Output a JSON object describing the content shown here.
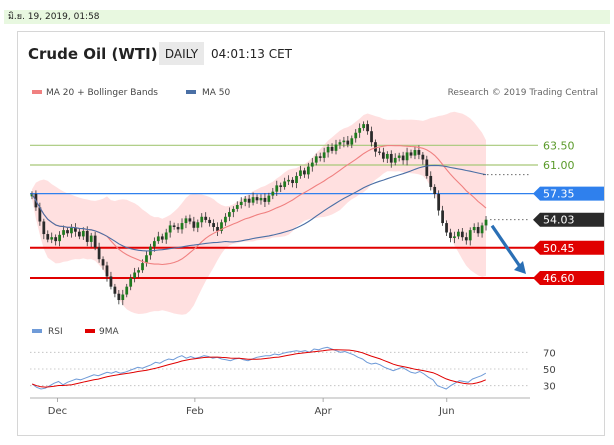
{
  "timestamp": "มิ.ย. 19, 2019, 01:58",
  "header": {
    "title": "Crude Oil (WTI)",
    "timeframe": "DAILY",
    "time": "04:01:13 CET"
  },
  "legend": {
    "ma20": "MA 20 + Bollinger Bands",
    "ma50": "MA 50",
    "credit": "Research © 2019 Trading Central",
    "rsi": "RSI",
    "rsi_ma": "9MA"
  },
  "colors": {
    "candle_up": "#1f7a1f",
    "candle_down": "#2a2a2a",
    "ma20": "#f08080",
    "bollinger_fill": "#ffd6d6",
    "ma50": "#4a6fa5",
    "resistance": "#a6c878",
    "pivot": "#2f80ed",
    "support": "#e00000",
    "last_price_tag": "#2a2a2a",
    "arrow": "#2a6fb5",
    "rsi": "#6f9bd8",
    "rsi_ma": "#e00000"
  },
  "chart_data": [
    {
      "type": "candlestick",
      "title": "Crude Oil (WTI)",
      "timeframe": "DAILY",
      "x_labels": [
        "Dec",
        "Feb",
        "Apr",
        "Jun"
      ],
      "ylim": [
        41,
        68
      ],
      "levels": [
        {
          "value": 63.5,
          "label": "63.50",
          "kind": "resistance"
        },
        {
          "value": 61.0,
          "label": "61.00",
          "kind": "resistance"
        },
        {
          "value": 57.35,
          "label": "57.35",
          "kind": "pivot"
        },
        {
          "value": 54.03,
          "label": "54.03",
          "kind": "last"
        },
        {
          "value": 50.45,
          "label": "50.45",
          "kind": "support"
        },
        {
          "value": 46.6,
          "label": "46.60",
          "kind": "support"
        }
      ],
      "close_series": [
        57.3,
        55.6,
        53.8,
        52.2,
        51.5,
        51.8,
        51.3,
        52.1,
        52.7,
        52.3,
        53.0,
        52.5,
        51.9,
        52.6,
        51.2,
        52.0,
        50.5,
        49.0,
        48.2,
        46.8,
        45.5,
        44.6,
        43.8,
        44.5,
        45.5,
        46.6,
        47.3,
        47.6,
        48.5,
        49.5,
        50.6,
        51.3,
        51.9,
        51.5,
        52.4,
        53.3,
        53.1,
        52.8,
        53.6,
        54.2,
        53.8,
        53.0,
        53.7,
        54.4,
        54.0,
        53.6,
        53.1,
        52.6,
        53.7,
        54.4,
        55.0,
        55.4,
        55.9,
        56.3,
        56.7,
        56.2,
        56.9,
        56.5,
        56.8,
        56.3,
        57.1,
        57.6,
        58.4,
        58.2,
        58.9,
        59.1,
        58.7,
        59.6,
        60.3,
        59.8,
        60.8,
        61.3,
        62.1,
        61.9,
        62.6,
        63.3,
        62.8,
        63.6,
        63.9,
        64.1,
        63.6,
        64.4,
        65.1,
        65.7,
        66.2,
        65.3,
        63.9,
        62.7,
        62.6,
        61.8,
        62.4,
        61.3,
        61.9,
        62.2,
        61.6,
        62.6,
        62.2,
        62.9,
        62.3,
        61.7,
        59.6,
        58.2,
        57.3,
        55.2,
        53.6,
        52.4,
        51.7,
        51.9,
        52.5,
        51.8,
        51.4,
        52.7,
        53.1,
        52.3,
        53.3,
        54.03
      ],
      "rsi": {
        "levels": [
          30,
          50,
          70
        ],
        "ma_label": "9MA",
        "values": [
          32,
          28,
          26,
          27,
          30,
          33,
          35,
          31,
          34,
          36,
          38,
          37,
          39,
          41,
          43,
          42,
          44,
          46,
          45,
          47,
          45,
          46,
          48,
          50,
          52,
          51,
          53,
          55,
          58,
          57,
          60,
          62,
          61,
          64,
          66,
          63,
          65,
          63,
          64,
          66,
          65,
          63,
          64,
          62,
          61,
          60,
          62,
          63,
          61,
          60,
          62,
          64,
          65,
          66,
          66,
          68,
          67,
          69,
          70,
          71,
          72,
          71,
          72,
          70,
          74,
          73,
          75,
          76,
          74,
          72,
          70,
          71,
          69,
          67,
          64,
          62,
          58,
          56,
          57,
          55,
          52,
          50,
          48,
          50,
          52,
          49,
          46,
          45,
          47,
          44,
          40,
          37,
          30,
          28,
          26,
          30,
          33,
          36,
          35,
          34,
          38,
          40,
          42,
          45
        ]
      }
    }
  ]
}
